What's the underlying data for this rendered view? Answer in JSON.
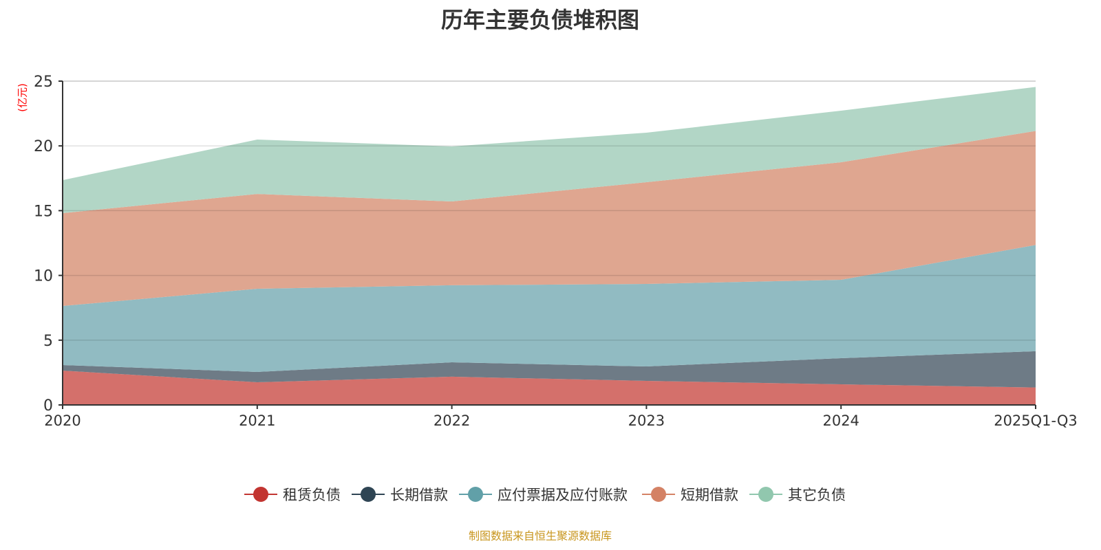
{
  "chart_data": {
    "type": "area",
    "stacked": true,
    "title": "历年主要负债堆积图",
    "ylabel": "(亿元)",
    "xlabel": "",
    "categories": [
      "2020",
      "2021",
      "2022",
      "2023",
      "2024",
      "2025Q1-Q3"
    ],
    "ylim": [
      0,
      25
    ],
    "yticks": [
      0,
      5,
      10,
      15,
      20,
      25
    ],
    "grid": true,
    "legend_position": "bottom",
    "series": [
      {
        "name": "租赁负债",
        "color": "#c23531",
        "fill": "#d4706b",
        "values": [
          2.65,
          1.75,
          2.18,
          1.86,
          1.59,
          1.35
        ]
      },
      {
        "name": "长期借款",
        "color": "#2f4554",
        "fill": "#6e7b86",
        "values": [
          0.43,
          0.8,
          1.11,
          1.11,
          2.02,
          2.8
        ]
      },
      {
        "name": "应付票据及应付账款",
        "color": "#61a0a8",
        "fill": "#91bbc2",
        "values": [
          4.56,
          6.42,
          5.95,
          6.37,
          6.05,
          8.2
        ]
      },
      {
        "name": "短期借款",
        "color": "#d48265",
        "fill": "#dfa690",
        "values": [
          7.17,
          7.32,
          6.47,
          7.86,
          9.08,
          8.8
        ]
      },
      {
        "name": "其它负债",
        "color": "#91c7ae",
        "fill": "#b2d6c6",
        "values": [
          2.55,
          4.2,
          4.25,
          3.82,
          3.98,
          3.4
        ]
      }
    ]
  },
  "source": "制图数据来自恒生聚源数据库"
}
